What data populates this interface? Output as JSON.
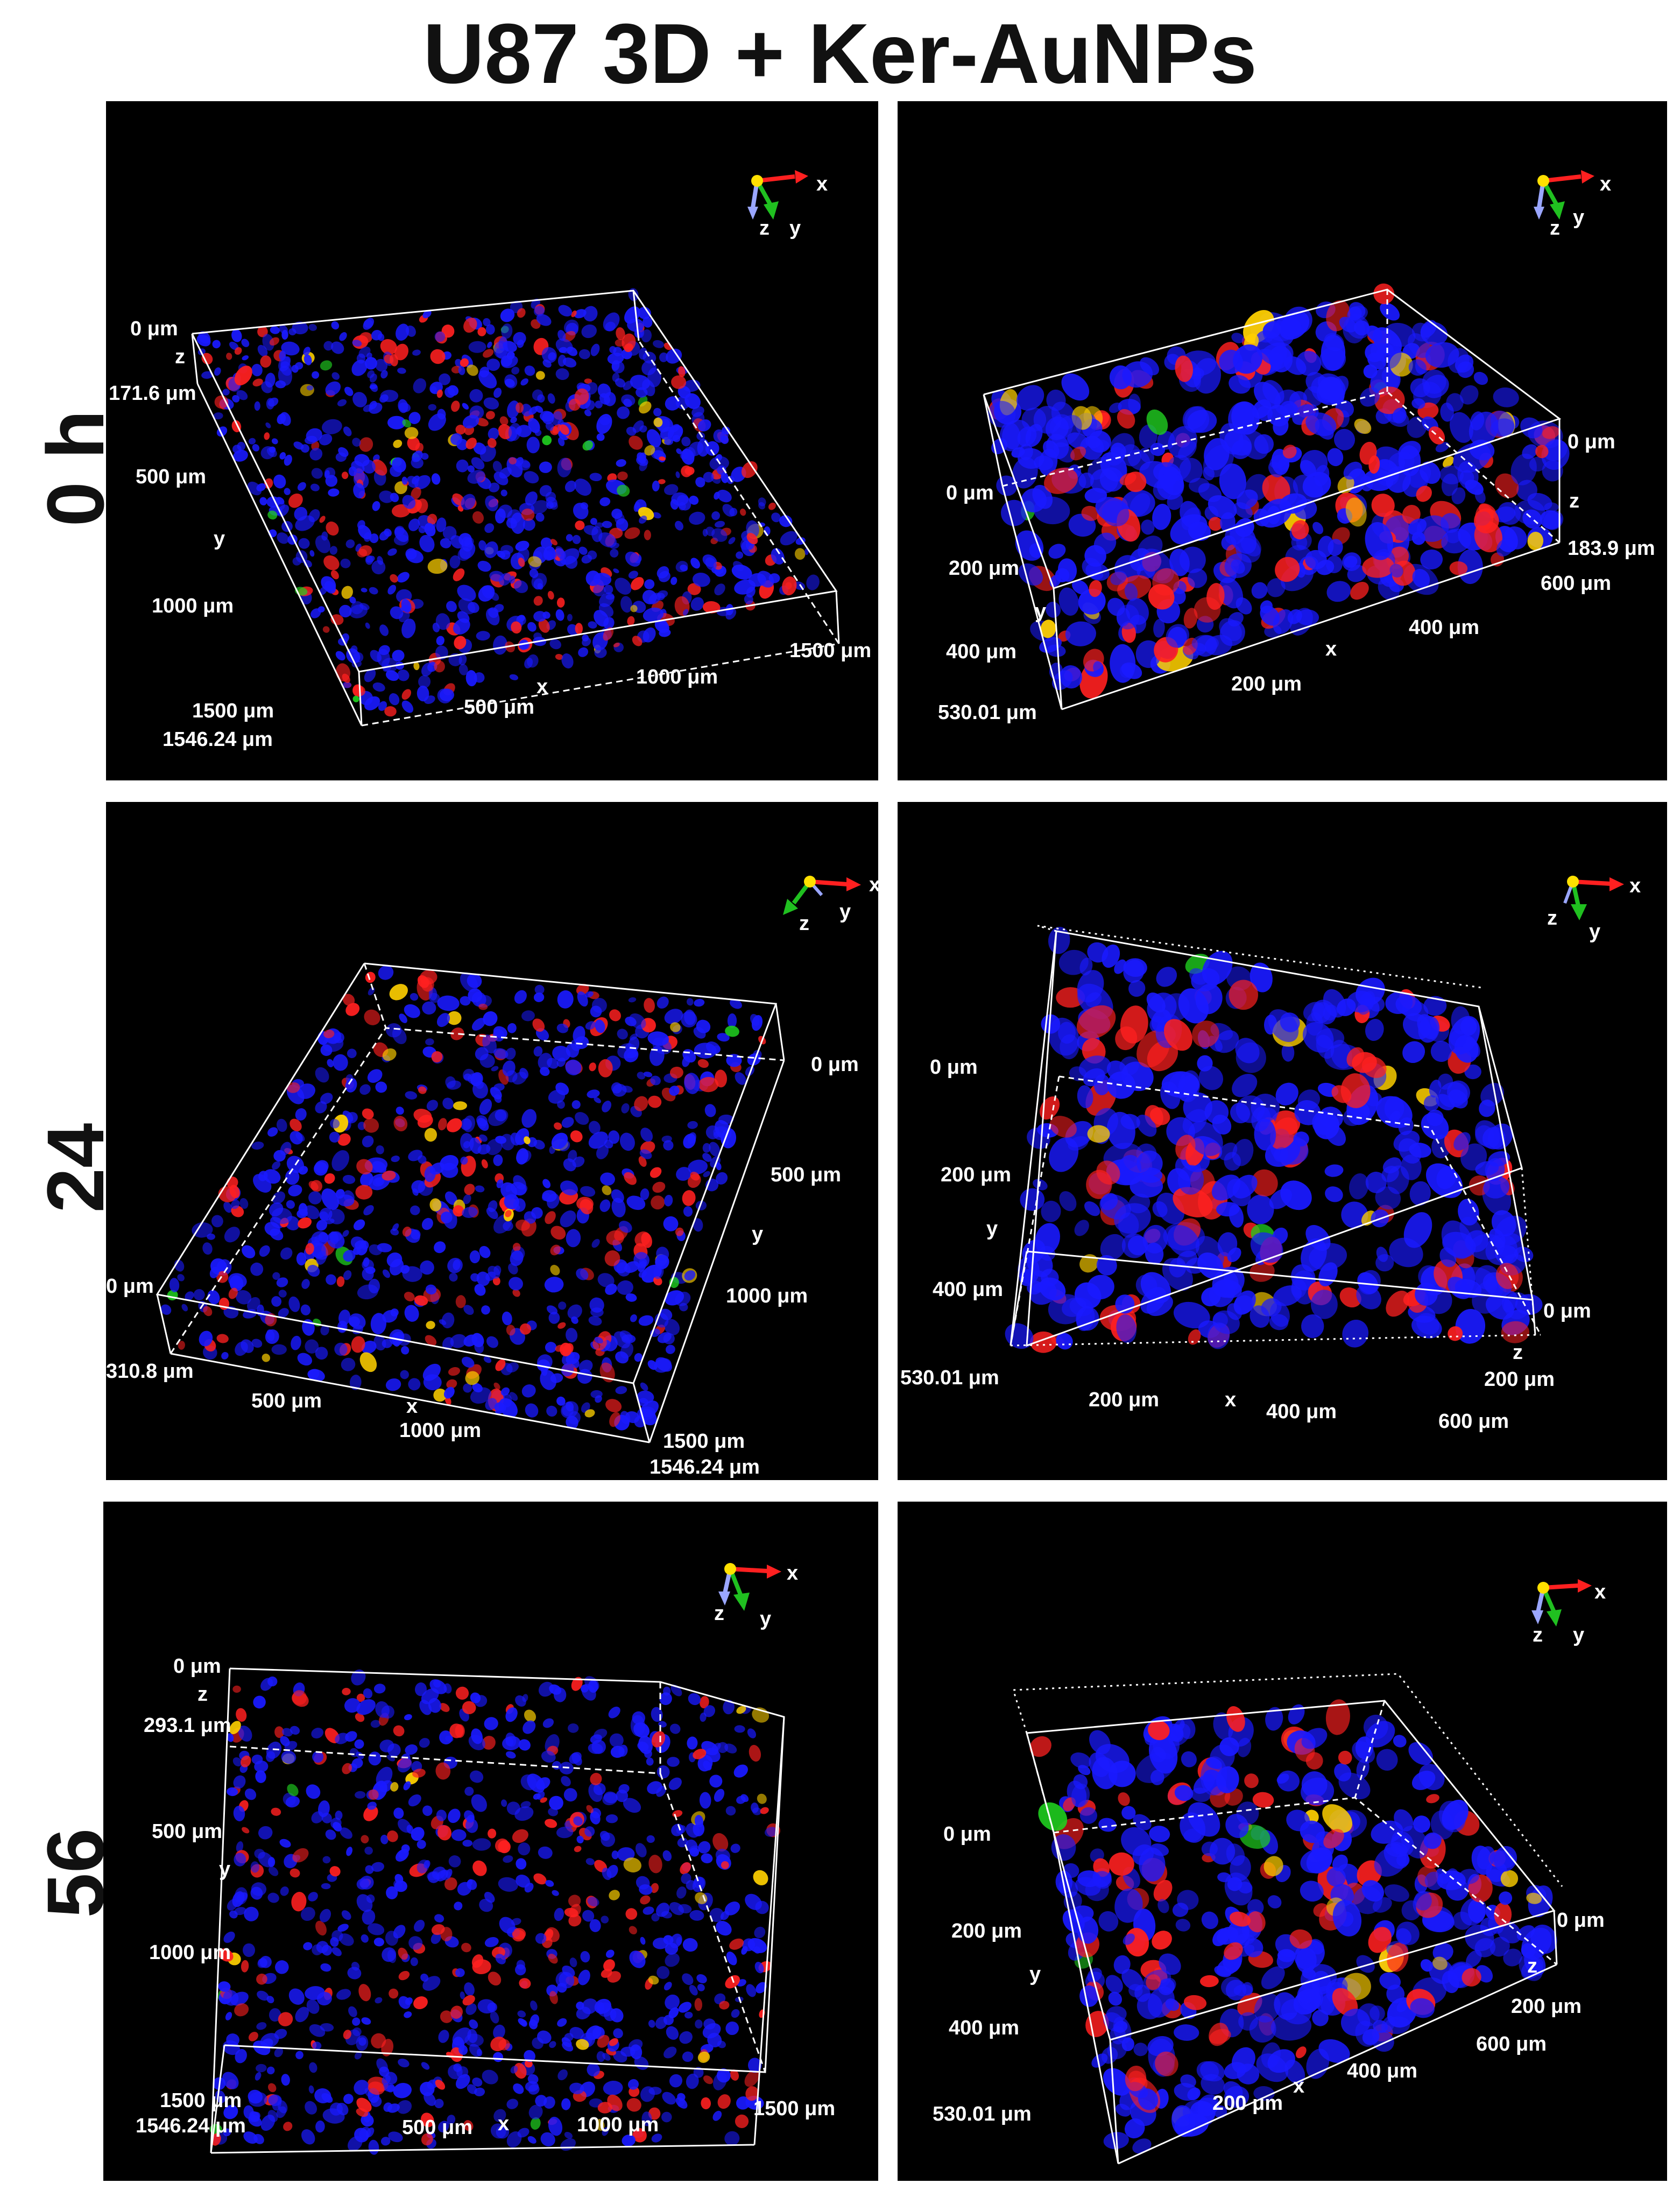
{
  "title": "U87 3D + Ker-AuNPs",
  "colors": {
    "background": "#000000",
    "nuclei": "#1a1aff",
    "aunps": "#ff2020",
    "overlap": "#ffd000",
    "green": "#20d020"
  },
  "rows": [
    {
      "label": "0 h"
    },
    {
      "label": "24 h"
    },
    {
      "label": "56 h"
    }
  ],
  "panels": [
    {
      "id": "p0h-left",
      "axis_labels": [
        "0 μm",
        "z",
        "171.6 μm",
        "500 μm",
        "y",
        "1000 μm",
        "1500 μm",
        "1546.24 μm",
        "500 μm",
        "x",
        "1000 μm",
        "1500 μm"
      ],
      "triad": [
        "x",
        "y",
        "z"
      ]
    },
    {
      "id": "p0h-right",
      "axis_labels": [
        "0 μm",
        "200 μm",
        "y",
        "400 μm",
        "530.01 μm",
        "200 μm",
        "x",
        "400 μm",
        "600 μm",
        "0 μm",
        "z",
        "183.9 μm"
      ],
      "triad": [
        "x",
        "y",
        "z"
      ]
    },
    {
      "id": "p24h-left",
      "axis_labels": [
        "0 μm",
        "310.8 μm",
        "500 μm",
        "x",
        "1000 μm",
        "1500 μm",
        "1546.24 μm",
        "0 μm",
        "500 μm",
        "y",
        "1000 μm"
      ],
      "triad": [
        "x",
        "y",
        "z"
      ]
    },
    {
      "id": "p24h-right",
      "axis_labels": [
        "0 μm",
        "200 μm",
        "y",
        "400 μm",
        "530.01 μm",
        "200 μm",
        "x",
        "400 μm",
        "600 μm",
        "0 μm",
        "z",
        "200 μm"
      ],
      "triad": [
        "x",
        "y",
        "z"
      ]
    },
    {
      "id": "p56h-left",
      "axis_labels": [
        "0 μm",
        "z",
        "293.1 μm",
        "500 μm",
        "y",
        "1000 μm",
        "1500 μm",
        "1546.24 μm",
        "500 μm",
        "x",
        "1000 μm",
        "1500 μm"
      ],
      "triad": [
        "x",
        "y",
        "z"
      ]
    },
    {
      "id": "p56h-right",
      "axis_labels": [
        "0 μm",
        "200 μm",
        "y",
        "400 μm",
        "530.01 μm",
        "200 μm",
        "x",
        "400 μm",
        "600 μm",
        "0 μm",
        "z",
        "200 μm"
      ],
      "triad": [
        "x",
        "y",
        "z"
      ]
    }
  ]
}
